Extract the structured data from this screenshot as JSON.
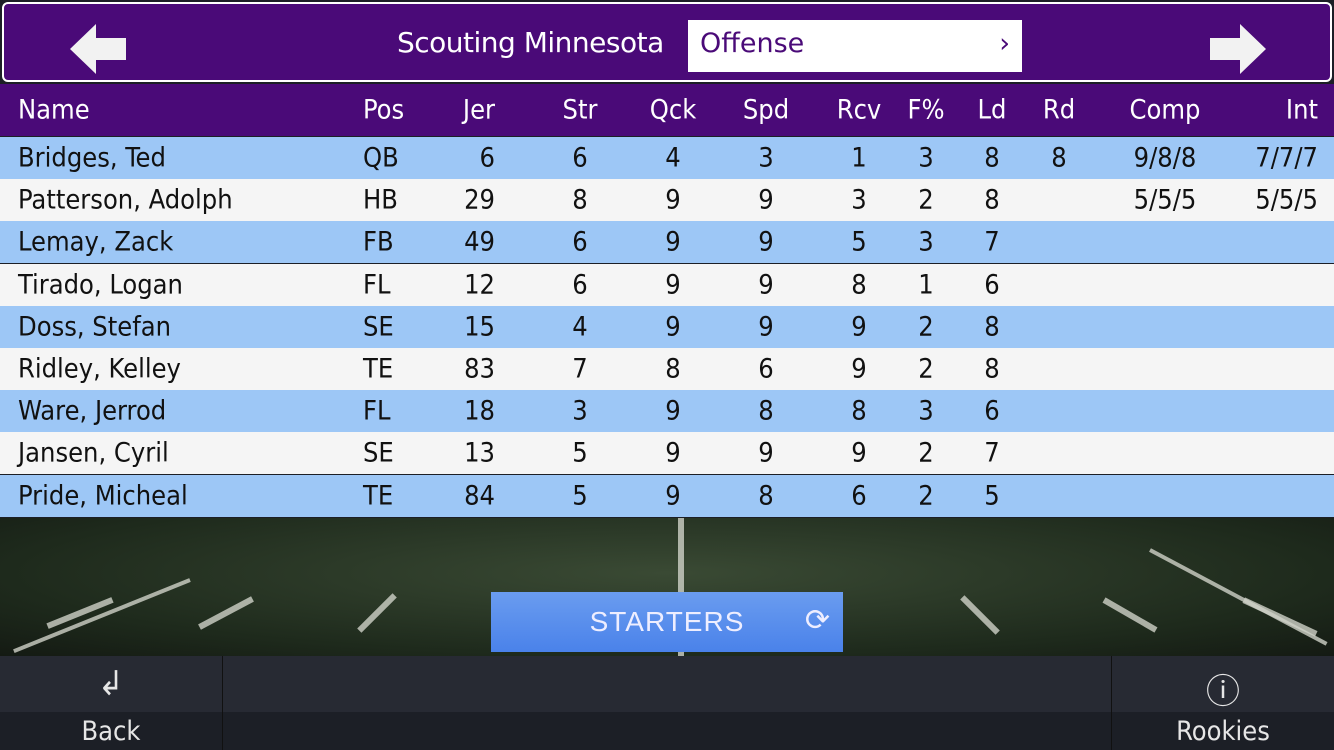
{
  "header": {
    "title": "Scouting Minnesota",
    "selector": {
      "value": "Offense"
    }
  },
  "columns": [
    "Name",
    "Pos",
    "Jer",
    "Str",
    "Qck",
    "Spd",
    "Rcv",
    "F%",
    "Ld",
    "Rd",
    "Comp",
    "Int"
  ],
  "rows": [
    [
      "Bridges, Ted",
      "QB",
      "6",
      "6",
      "4",
      "3",
      "1",
      "3",
      "8",
      "8",
      "9/8/8",
      "7/7/7"
    ],
    [
      "Patterson, Adolph",
      "HB",
      "29",
      "8",
      "9",
      "9",
      "3",
      "2",
      "8",
      "",
      "5/5/5",
      "5/5/5"
    ],
    [
      "Lemay, Zack",
      "FB",
      "49",
      "6",
      "9",
      "9",
      "5",
      "3",
      "7",
      "",
      "",
      ""
    ],
    [
      "Tirado, Logan",
      "FL",
      "12",
      "6",
      "9",
      "9",
      "8",
      "1",
      "6",
      "",
      "",
      ""
    ],
    [
      "Doss, Stefan",
      "SE",
      "15",
      "4",
      "9",
      "9",
      "9",
      "2",
      "8",
      "",
      "",
      ""
    ],
    [
      "Ridley, Kelley",
      "TE",
      "83",
      "7",
      "8",
      "6",
      "9",
      "2",
      "8",
      "",
      "",
      ""
    ],
    [
      "Ware, Jerrod",
      "FL",
      "18",
      "3",
      "9",
      "8",
      "8",
      "3",
      "6",
      "",
      "",
      ""
    ],
    [
      "Jansen, Cyril",
      "SE",
      "13",
      "5",
      "9",
      "9",
      "9",
      "2",
      "7",
      "",
      "",
      ""
    ],
    [
      "Pride, Micheal",
      "TE",
      "84",
      "5",
      "9",
      "8",
      "6",
      "2",
      "5",
      "",
      "",
      ""
    ]
  ],
  "starters_label": "STARTERS",
  "nav": {
    "back": "Back",
    "rookies": "Rookies"
  },
  "colors": {
    "header": "#4a0a78",
    "row_alt": "#9dc7f6",
    "row": "#f5f5f5",
    "button": "#5a8eec"
  }
}
